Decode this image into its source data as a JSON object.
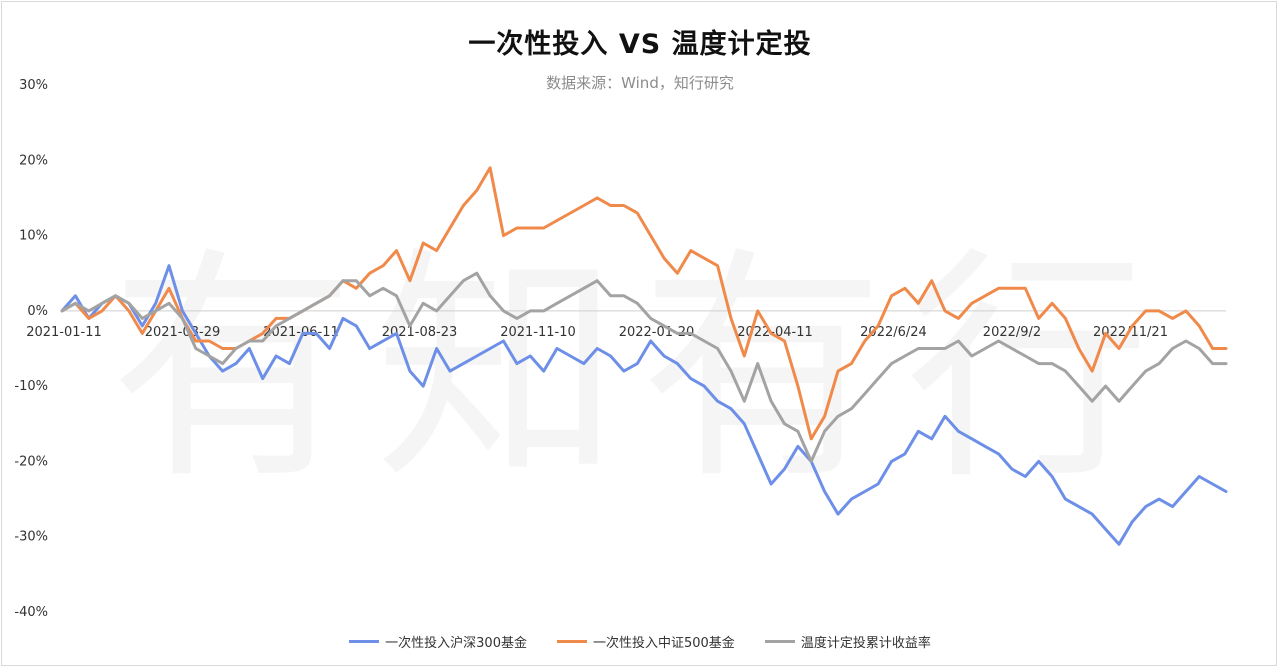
{
  "chart_data": {
    "type": "line",
    "title": "一次性投入 VS 温度计定投",
    "subtitle": "数据来源：Wind，知行研究",
    "watermark": "有知有行",
    "xlabel": "",
    "ylabel": "",
    "y_ticks": [
      "30%",
      "20%",
      "10%",
      "0%",
      "-10%",
      "-20%",
      "-30%",
      "-40%"
    ],
    "ylim": [
      -40,
      30
    ],
    "x_ticks": [
      "2021-01-11",
      "2021-03-29",
      "2021-06-11",
      "2021-08-23",
      "2021-11-10",
      "2022-01-20",
      "2022-04-11",
      "2022/6/24",
      "2022/9/2",
      "2022/11/21"
    ],
    "grid": false,
    "legend_position": "bottom",
    "series": [
      {
        "name": "一次性投入沪深300基金",
        "color": "#6d8fe8",
        "values": [
          0,
          2,
          -1,
          1,
          2,
          1,
          -2,
          1,
          6,
          0,
          -3,
          -6,
          -8,
          -7,
          -5,
          -9,
          -6,
          -7,
          -3,
          -3,
          -5,
          -1,
          -2,
          -5,
          -4,
          -3,
          -8,
          -10,
          -5,
          -8,
          -7,
          -6,
          -5,
          -4,
          -7,
          -6,
          -8,
          -5,
          -6,
          -7,
          -5,
          -6,
          -8,
          -7,
          -4,
          -6,
          -7,
          -9,
          -10,
          -12,
          -13,
          -15,
          -19,
          -23,
          -21,
          -18,
          -20,
          -24,
          -27,
          -25,
          -24,
          -23,
          -20,
          -19,
          -16,
          -17,
          -14,
          -16,
          -17,
          -18,
          -19,
          -21,
          -22,
          -20,
          -22,
          -25,
          -26,
          -27,
          -29,
          -31,
          -28,
          -26,
          -25,
          -26,
          -24,
          -22,
          -23,
          -24
        ]
      },
      {
        "name": "一次性投入中证500基金",
        "color": "#f08a4b",
        "values": [
          0,
          1,
          -1,
          0,
          2,
          0,
          -3,
          0,
          3,
          -1,
          -4,
          -4,
          -5,
          -5,
          -4,
          -3,
          -1,
          -1,
          0,
          1,
          2,
          4,
          3,
          5,
          6,
          8,
          4,
          9,
          8,
          11,
          14,
          16,
          19,
          10,
          11,
          11,
          11,
          12,
          13,
          14,
          15,
          14,
          14,
          13,
          10,
          7,
          5,
          8,
          7,
          6,
          -1,
          -6,
          0,
          -3,
          -4,
          -10,
          -17,
          -14,
          -8,
          -7,
          -4,
          -2,
          2,
          3,
          1,
          4,
          0,
          -1,
          1,
          2,
          3,
          3,
          3,
          -1,
          1,
          -1,
          -5,
          -8,
          -3,
          -5,
          -2,
          0,
          0,
          -1,
          0,
          -2,
          -5,
          -5
        ]
      },
      {
        "name": "温度计定投累计收益率",
        "color": "#a3a3a3",
        "values": [
          0,
          1,
          0,
          1,
          2,
          1,
          -1,
          0,
          1,
          -1,
          -5,
          -6,
          -7,
          -5,
          -4,
          -4,
          -2,
          -1,
          0,
          1,
          2,
          4,
          4,
          2,
          3,
          2,
          -2,
          1,
          0,
          2,
          4,
          5,
          2,
          0,
          -1,
          0,
          0,
          1,
          2,
          3,
          4,
          2,
          2,
          1,
          -1,
          -2,
          -3,
          -3,
          -4,
          -5,
          -8,
          -12,
          -7,
          -12,
          -15,
          -16,
          -20,
          -16,
          -14,
          -13,
          -11,
          -9,
          -7,
          -6,
          -5,
          -5,
          -5,
          -4,
          -6,
          -5,
          -4,
          -5,
          -6,
          -7,
          -7,
          -8,
          -10,
          -12,
          -10,
          -12,
          -10,
          -8,
          -7,
          -5,
          -4,
          -5,
          -7,
          -7
        ]
      }
    ]
  }
}
